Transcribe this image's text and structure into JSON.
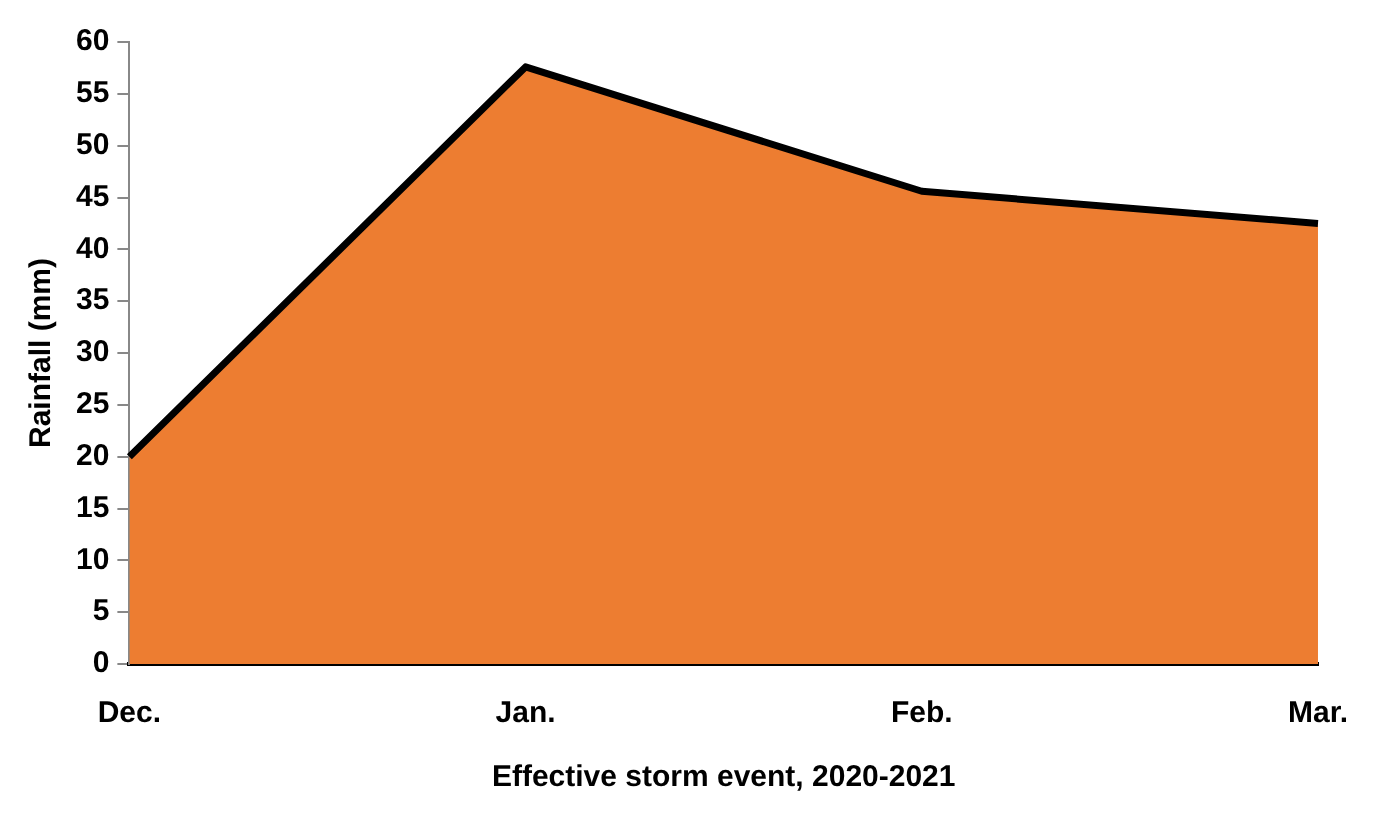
{
  "chart_data": {
    "type": "area",
    "xlabel": "Effective storm event, 2020-2021",
    "ylabel": "Rainfall (mm)",
    "categories": [
      "Dec.",
      "Jan.",
      "Feb.",
      "Mar."
    ],
    "series": [
      {
        "color": "#ed7d31",
        "values": [
          20,
          57.6,
          45.6,
          42.5
        ]
      }
    ],
    "ylim": [
      0,
      60
    ],
    "yticks": [
      0,
      5,
      10,
      15,
      20,
      25,
      30,
      35,
      40,
      45,
      50,
      55,
      60
    ],
    "grid": false,
    "legend": false
  }
}
